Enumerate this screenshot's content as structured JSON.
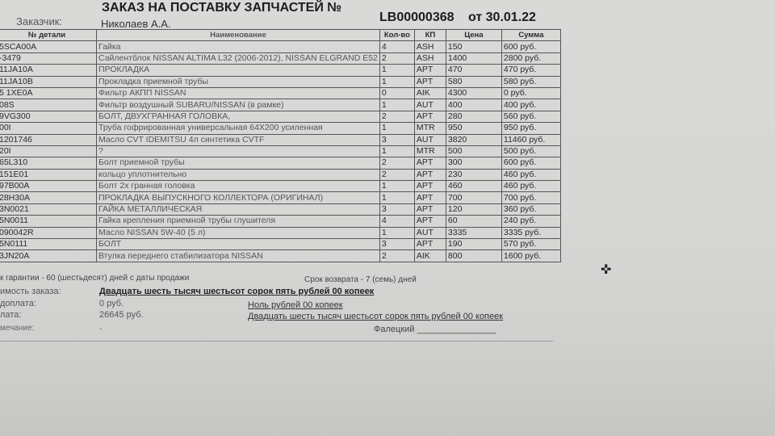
{
  "header": {
    "title": "ЗАКАЗ НА ПОСТАВКУ ЗАПЧАСТЕЙ  №",
    "number": "LB00000368",
    "date": "от 30.01.22",
    "customer_label": "Заказчик:",
    "customer": "Николаев А.А."
  },
  "columns": [
    "№ детали",
    "Наименование",
    "Кол-во",
    "КП",
    "Цена",
    "Сумма"
  ],
  "rows": [
    [
      "5SCA00A",
      "Гайка",
      "4",
      "ASH",
      "150",
      "600 руб."
    ],
    [
      "-3479",
      "Сайлентблок NISSAN ALTIMA L32 (2006-2012), NISSAN ELGRAND E52",
      "2",
      "ASH",
      "1400",
      "2800 руб."
    ],
    [
      "11JA10A",
      "ПРОКЛАДКА",
      "1",
      "APT",
      "470",
      "470 руб."
    ],
    [
      "11JA10B",
      "Прокладка приемной трубы",
      "1",
      "APT",
      "580",
      "580 руб."
    ],
    [
      "5 1XE0A",
      "Фильтр АКПП NISSAN",
      "0",
      "AIK",
      "4300",
      "0 руб."
    ],
    [
      "08S",
      "Фильтр воздушный SUBARU/NISSAN (в рамке)",
      "1",
      "AUT",
      "400",
      "400 руб."
    ],
    [
      "9VG300",
      "БОЛТ, ДВУХГРАННАЯ ГОЛОВКА,",
      "2",
      "APT",
      "280",
      "560 руб."
    ],
    [
      "00I",
      "Труба гофрированная универсальная 64X200 усиленная",
      "1",
      "MTR",
      "950",
      "950 руб."
    ],
    [
      "1201746",
      "Масло CVT IDEMITSU 4л синтетика CVTF",
      "3",
      "AUT",
      "3820",
      "11460 руб."
    ],
    [
      "20I",
      "?",
      "1",
      "MTR",
      "500",
      "500 руб."
    ],
    [
      "65L310",
      "Болт приемной трубы",
      "2",
      "APT",
      "300",
      "600 руб."
    ],
    [
      "151E01",
      "кольцо уплотнительно",
      "2",
      "APT",
      "230",
      "460 руб."
    ],
    [
      "97B00A",
      "Болт 2х гранная головка",
      "1",
      "APT",
      "460",
      "460 руб."
    ],
    [
      "28H30A",
      "ПРОКЛАДКА ВЫПУСКНОГО КОЛЛЕКТОРА (ОРИГИНАЛ)",
      "1",
      "APT",
      "700",
      "700 руб."
    ],
    [
      "3N0021",
      "ГАЙКА МЕТАЛЛИЧЕСКАЯ",
      "3",
      "APT",
      "120",
      "360 руб."
    ],
    [
      "5N0011",
      "Гайка крепления приемной трубы глушителя",
      "4",
      "APT",
      "60",
      "240 руб."
    ],
    [
      "090042R",
      "Масло NISSAN 5W-40 (5 л)",
      "1",
      "AUT",
      "3335",
      "3335 руб."
    ],
    [
      "5N0111",
      "БОЛТ",
      "3",
      "APT",
      "190",
      "570 руб."
    ],
    [
      "3JN20A",
      "Втулка переднего стабилизатора NISSAN",
      "2",
      "AIK",
      "800",
      "1600 руб."
    ]
  ],
  "footer": {
    "warranty": "к гарантии - 60 (шестьдесят) дней с даты продажи",
    "return": "Срок возврата - 7 (семь) дней",
    "total_label": "имость заказа:",
    "total_words": "Двадцать шесть тысяч шестьсот сорок пять рублей 00 копеек",
    "prepay_label": "доплата:",
    "prepay": "0 руб.",
    "prepay_words": "Ноль рублей 00 копеек",
    "pay_label": "лата:",
    "pay": "26645 руб.",
    "pay_words": "Двадцать шесть тысяч шестьсот сорок пять рублей 00 копеек",
    "note_label": "мечание:",
    "note": "-",
    "signer": "Фалецкий ________________"
  }
}
